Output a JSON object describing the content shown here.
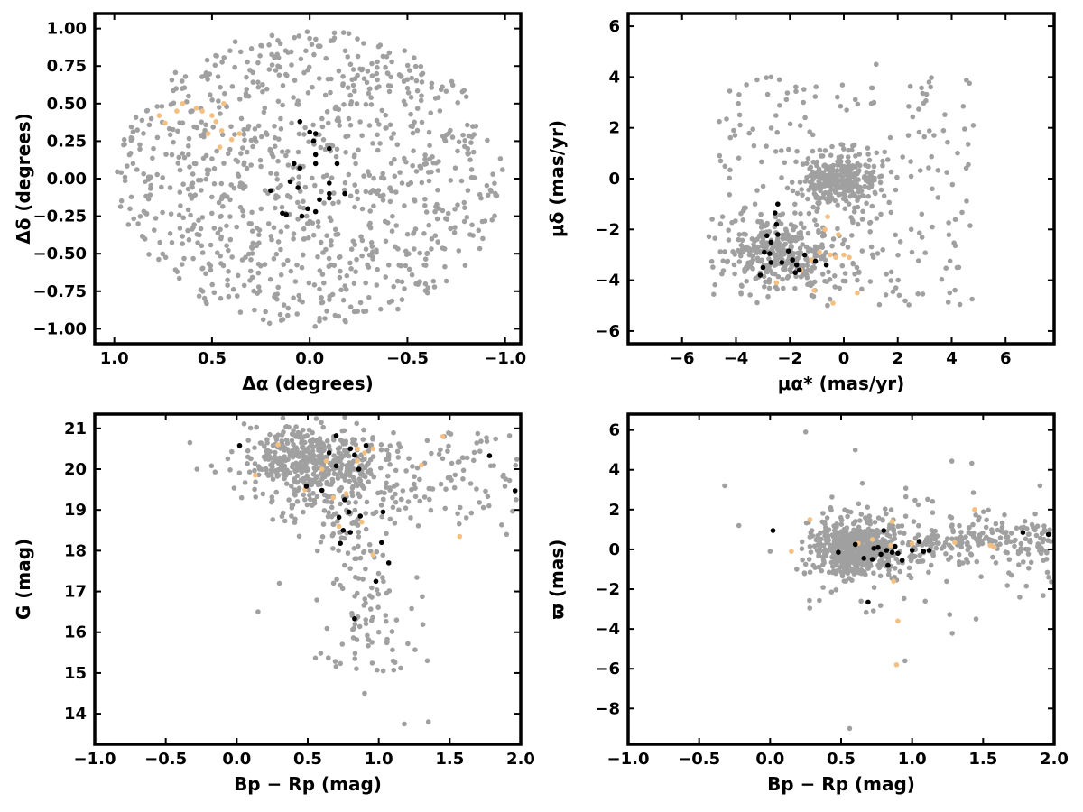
{
  "figure": {
    "colors": {
      "field": "#a0a0a0",
      "candidate": "#f5bf80",
      "member": "#000000",
      "frame": "#000000"
    }
  },
  "chart_data": [
    {
      "id": "p1",
      "type": "scatter",
      "title": "",
      "xlabel": "Δα (degrees)",
      "ylabel": "Δδ (degrees)",
      "xlim": [
        1.1,
        -1.08
      ],
      "ylim": [
        -1.1,
        1.1
      ],
      "xticks": [
        1.0,
        0.5,
        0.0,
        -0.5,
        -1.0
      ],
      "xtick_labels": [
        "1.0",
        "0.5",
        "0.0",
        "−0.5",
        "−1.0"
      ],
      "yticks": [
        1.0,
        0.75,
        0.5,
        0.25,
        0.0,
        -0.25,
        -0.5,
        -0.75,
        -1.0
      ],
      "ytick_labels": [
        "1.00",
        "0.75",
        "0.50",
        "0.25",
        "0.00",
        "−0.25",
        "−0.50",
        "−0.75",
        "−1.00"
      ],
      "grid": false,
      "series": [
        {
          "color": "#a0a0a0",
          "points": [
            [
              0.8,
              0.2
            ],
            [
              0.62,
              0.55
            ],
            [
              0.55,
              -0.6
            ],
            [
              0.15,
              0.9
            ],
            [
              -0.05,
              -0.95
            ],
            [
              -0.4,
              0.7
            ],
            [
              -0.6,
              -0.5
            ],
            [
              -0.85,
              0.35
            ],
            [
              -0.95,
              -0.1
            ],
            [
              0.92,
              -0.2
            ],
            [
              0.3,
              -0.3
            ],
            [
              -0.2,
              0.4
            ]
          ]
        },
        {
          "color": "#f5bf80",
          "points": [
            [
              0.77,
              0.42
            ],
            [
              0.74,
              0.37
            ],
            [
              0.65,
              0.5
            ],
            [
              0.58,
              0.47
            ],
            [
              0.55,
              0.45
            ],
            [
              0.5,
              0.42
            ],
            [
              0.48,
              0.38
            ],
            [
              0.45,
              0.32
            ],
            [
              0.4,
              0.26
            ],
            [
              0.36,
              0.3
            ],
            [
              0.44,
              0.5
            ],
            [
              0.52,
              0.3
            ],
            [
              0.46,
              0.21
            ],
            [
              0.68,
              0.45
            ]
          ]
        },
        {
          "color": "#000000",
          "points": [
            [
              0.05,
              0.38
            ],
            [
              0.0,
              0.31
            ],
            [
              -0.03,
              0.3
            ],
            [
              -0.02,
              0.25
            ],
            [
              -0.1,
              0.2
            ],
            [
              -0.03,
              0.16
            ],
            [
              0.08,
              0.1
            ],
            [
              0.05,
              0.07
            ],
            [
              -0.03,
              0.1
            ],
            [
              -0.14,
              0.1
            ],
            [
              0.1,
              -0.02
            ],
            [
              0.06,
              -0.06
            ],
            [
              0.2,
              -0.08
            ],
            [
              -0.1,
              -0.03
            ],
            [
              -0.1,
              -0.1
            ],
            [
              -0.18,
              -0.1
            ],
            [
              -0.1,
              -0.13
            ],
            [
              0.01,
              -0.2
            ],
            [
              -0.03,
              -0.22
            ],
            [
              0.04,
              -0.25
            ],
            [
              0.14,
              -0.23
            ],
            [
              0.12,
              -0.24
            ],
            [
              -0.05,
              -0.14
            ]
          ]
        }
      ]
    },
    {
      "id": "p2",
      "type": "scatter",
      "title": "",
      "xlabel": "μα* (mas/yr)",
      "ylabel": "μδ (mas/yr)",
      "xlim": [
        -8.0,
        7.8
      ],
      "ylim": [
        -6.5,
        6.5
      ],
      "xticks": [
        -6,
        -4,
        -2,
        0,
        2,
        4,
        6
      ],
      "xtick_labels": [
        "−6",
        "−4",
        "−2",
        "0",
        "2",
        "4",
        "6"
      ],
      "yticks": [
        6,
        4,
        2,
        0,
        -2,
        -4,
        -6
      ],
      "ytick_labels": [
        "6",
        "4",
        "2",
        "0",
        "−2",
        "−4",
        "−6"
      ],
      "grid": false,
      "series": [
        {
          "color": "#a0a0a0",
          "points": [
            [
              -0.3,
              -0.1
            ],
            [
              -3.5,
              -3.0
            ],
            [
              1.2,
              4.5
            ],
            [
              4.8,
              2.1
            ],
            [
              -4.5,
              -1.5
            ],
            [
              0.5,
              -4.0
            ],
            [
              2.5,
              -2.0
            ],
            [
              -1.5,
              3.0
            ],
            [
              4.2,
              -3.5
            ],
            [
              -2.7,
              4.0
            ]
          ]
        },
        {
          "color": "#f5bf80",
          "points": [
            [
              -1.2,
              -3.2
            ],
            [
              -0.9,
              -2.9
            ],
            [
              -0.5,
              -3.0
            ],
            [
              -0.3,
              -3.1
            ],
            [
              0.0,
              -3.0
            ],
            [
              0.2,
              -3.1
            ],
            [
              -0.2,
              -2.2
            ],
            [
              -0.6,
              -1.5
            ],
            [
              -1.6,
              -3.6
            ],
            [
              -2.5,
              -4.1
            ],
            [
              -0.4,
              -4.9
            ],
            [
              0.5,
              -4.5
            ],
            [
              -1.1,
              -4.4
            ],
            [
              -0.7,
              -2.0
            ]
          ]
        },
        {
          "color": "#000000",
          "points": [
            [
              -2.45,
              -1.0
            ],
            [
              -2.55,
              -1.35
            ],
            [
              -2.5,
              -1.8
            ],
            [
              -2.45,
              -2.2
            ],
            [
              -2.85,
              -2.25
            ],
            [
              -2.7,
              -2.5
            ],
            [
              -2.95,
              -2.9
            ],
            [
              -2.75,
              -2.95
            ],
            [
              -3.0,
              -3.5
            ],
            [
              -2.7,
              -3.3
            ],
            [
              -2.3,
              -3.3
            ],
            [
              -1.9,
              -3.2
            ],
            [
              -1.75,
              -3.4
            ],
            [
              -1.65,
              -3.6
            ],
            [
              -2.05,
              -2.85
            ],
            [
              -1.8,
              -3.7
            ],
            [
              -1.45,
              -3.0
            ],
            [
              -1.05,
              -3.25
            ],
            [
              -0.65,
              -3.4
            ],
            [
              -3.1,
              -3.8
            ]
          ]
        }
      ]
    },
    {
      "id": "p3",
      "type": "scatter",
      "title": "",
      "xlabel": "Bp − Rp (mag)",
      "ylabel": "G (mag)",
      "xlim": [
        -1.0,
        2.0
      ],
      "ylim": [
        13.25,
        21.35
      ],
      "xticks": [
        -1.0,
        -0.5,
        0.0,
        0.5,
        1.0,
        1.5,
        2.0
      ],
      "xtick_labels": [
        "−1.0",
        "−0.5",
        "0.0",
        "0.5",
        "1.0",
        "1.5",
        "2.0"
      ],
      "yticks": [
        14,
        15,
        16,
        17,
        18,
        19,
        20,
        21
      ],
      "ytick_labels": [
        "14",
        "15",
        "16",
        "17",
        "18",
        "19",
        "20",
        "21"
      ],
      "grid": false,
      "series": [
        {
          "color": "#a0a0a0",
          "points": [
            [
              -0.33,
              20.65
            ],
            [
              -0.28,
              20.0
            ],
            [
              0.7,
              20.2
            ],
            [
              1.5,
              19.8
            ],
            [
              1.9,
              18.4
            ],
            [
              0.9,
              14.5
            ],
            [
              1.35,
              13.8
            ],
            [
              1.18,
              13.75
            ],
            [
              0.3,
              17.2
            ],
            [
              1.0,
              16.0
            ],
            [
              0.15,
              16.5
            ]
          ]
        },
        {
          "color": "#f5bf80",
          "points": [
            [
              0.13,
              19.85
            ],
            [
              0.29,
              20.6
            ],
            [
              0.6,
              20.0
            ],
            [
              0.63,
              20.2
            ],
            [
              0.85,
              20.2
            ],
            [
              0.9,
              20.4
            ],
            [
              0.85,
              20.5
            ],
            [
              0.48,
              19.5
            ],
            [
              0.68,
              19.3
            ],
            [
              0.72,
              18.6
            ],
            [
              0.88,
              18.7
            ],
            [
              0.96,
              17.9
            ],
            [
              1.3,
              20.1
            ],
            [
              1.45,
              20.8
            ],
            [
              1.57,
              18.35
            ],
            [
              0.77,
              19.4
            ],
            [
              0.96,
              20.5
            ]
          ]
        },
        {
          "color": "#000000",
          "points": [
            [
              0.02,
              20.58
            ],
            [
              0.49,
              19.58
            ],
            [
              0.6,
              19.48
            ],
            [
              0.7,
              20.82
            ],
            [
              0.65,
              20.4
            ],
            [
              0.7,
              20.08
            ],
            [
              0.8,
              20.5
            ],
            [
              0.83,
              20.35
            ],
            [
              0.86,
              20.0
            ],
            [
              0.91,
              20.58
            ],
            [
              0.72,
              18.82
            ],
            [
              0.76,
              19.25
            ],
            [
              0.79,
              18.95
            ],
            [
              0.87,
              18.85
            ],
            [
              0.75,
              18.5
            ],
            [
              0.8,
              18.45
            ],
            [
              0.73,
              18.18
            ],
            [
              1.03,
              18.95
            ],
            [
              1.02,
              18.2
            ],
            [
              1.07,
              17.7
            ],
            [
              0.98,
              17.25
            ],
            [
              0.83,
              16.33
            ],
            [
              1.78,
              20.33
            ],
            [
              1.96,
              19.47
            ]
          ]
        }
      ]
    },
    {
      "id": "p4",
      "type": "scatter",
      "title": "",
      "xlabel": "Bp − Rp (mag)",
      "ylabel": "ϖ (mas)",
      "xlim": [
        -1.0,
        2.0
      ],
      "ylim": [
        -9.8,
        6.8
      ],
      "xticks": [
        -1.0,
        -0.5,
        0.0,
        0.5,
        1.0,
        1.5,
        2.0
      ],
      "xtick_labels": [
        "−1.0",
        "−0.5",
        "0.0",
        "0.5",
        "1.0",
        "1.5",
        "2.0"
      ],
      "yticks": [
        6,
        4,
        2,
        0,
        -2,
        -4,
        -6,
        -8
      ],
      "ytick_labels": [
        "6",
        "4",
        "2",
        "0",
        "−2",
        "−4",
        "−6",
        "−8"
      ],
      "grid": false,
      "series": [
        {
          "color": "#a0a0a0",
          "points": [
            [
              0.25,
              5.9
            ],
            [
              -0.32,
              3.2
            ],
            [
              -0.22,
              1.2
            ],
            [
              0.56,
              -9.0
            ],
            [
              0.95,
              -5.6
            ],
            [
              0.6,
              5.0
            ],
            [
              1.9,
              3.2
            ],
            [
              0.0,
              -0.1
            ],
            [
              1.7,
              -1.3
            ],
            [
              1.45,
              -3.5
            ]
          ]
        },
        {
          "color": "#f5bf80",
          "points": [
            [
              0.28,
              1.5
            ],
            [
              0.15,
              -0.1
            ],
            [
              0.62,
              0.3
            ],
            [
              0.72,
              0.5
            ],
            [
              0.85,
              0.2
            ],
            [
              0.86,
              1.4
            ],
            [
              0.87,
              -1.6
            ],
            [
              0.9,
              -3.6
            ],
            [
              0.89,
              -5.8
            ],
            [
              1.3,
              0.35
            ],
            [
              1.44,
              2.0
            ],
            [
              1.55,
              0.2
            ],
            [
              1.58,
              0.1
            ],
            [
              1.0,
              0.3
            ]
          ]
        },
        {
          "color": "#000000",
          "points": [
            [
              0.02,
              0.95
            ],
            [
              0.48,
              -0.15
            ],
            [
              0.6,
              0.25
            ],
            [
              0.66,
              -0.45
            ],
            [
              0.69,
              -2.65
            ],
            [
              0.72,
              -0.5
            ],
            [
              0.73,
              0.05
            ],
            [
              0.76,
              0.1
            ],
            [
              0.78,
              -0.25
            ],
            [
              0.8,
              0.95
            ],
            [
              0.82,
              -0.05
            ],
            [
              0.83,
              -0.8
            ],
            [
              0.86,
              -0.15
            ],
            [
              0.88,
              0.15
            ],
            [
              0.9,
              -0.2
            ],
            [
              0.93,
              -0.55
            ],
            [
              1.0,
              -0.05
            ],
            [
              1.05,
              0.4
            ],
            [
              1.08,
              -0.1
            ],
            [
              1.12,
              -0.05
            ],
            [
              1.78,
              0.85
            ],
            [
              1.96,
              0.75
            ]
          ]
        }
      ]
    }
  ]
}
